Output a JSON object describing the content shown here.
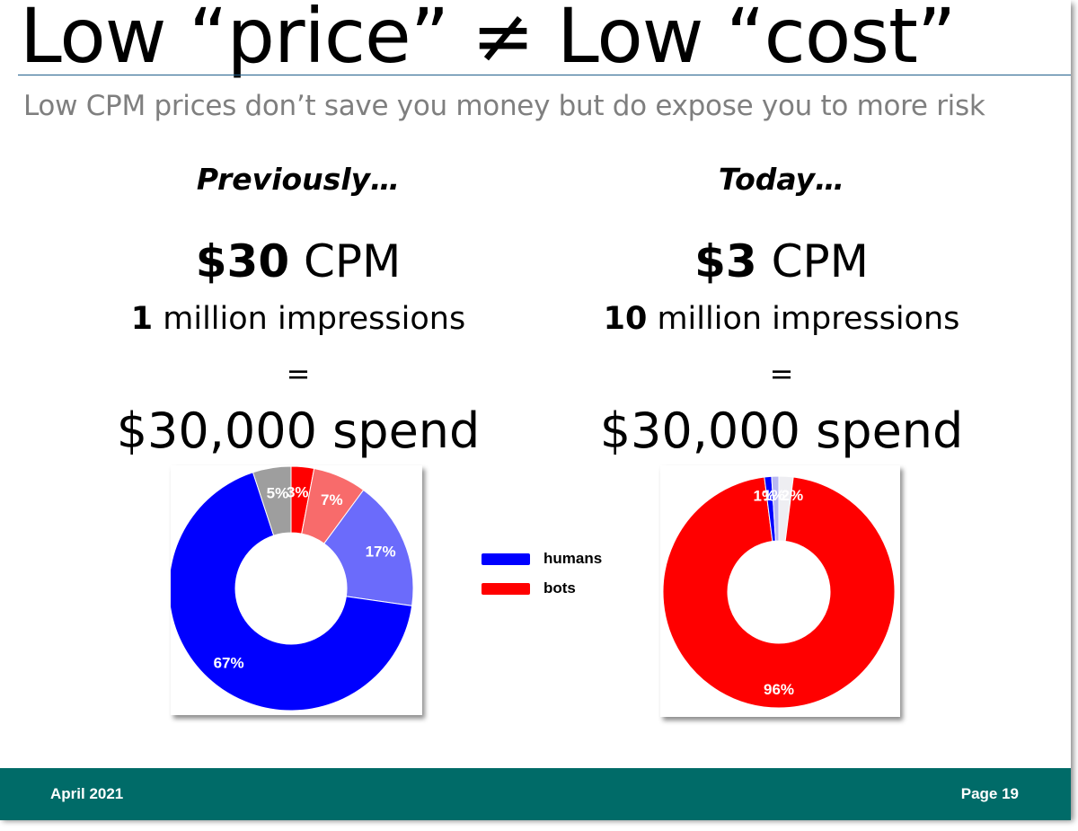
{
  "slide": {
    "title": "Low “price” ≠  Low “cost”",
    "subtitle": "Low CPM prices don’t save you money but do expose you to more risk"
  },
  "left_column": {
    "heading": "Previously…",
    "cpm_value": "$30",
    "cpm_unit": " CPM",
    "impressions_value": "1",
    "impressions_text": " million impressions",
    "equals": "=",
    "spend": "$30,000 spend"
  },
  "right_column": {
    "heading": "Today…",
    "cpm_value": "$3",
    "cpm_unit": " CPM",
    "impressions_value": "10",
    "impressions_text": " million impressions",
    "equals": "=",
    "spend": "$30,000 spend"
  },
  "legend": {
    "items": [
      {
        "label": "humans",
        "color": "#0000ff"
      },
      {
        "label": "bots",
        "color": "#ff0000"
      }
    ]
  },
  "chart_data": [
    {
      "type": "pie",
      "donut": true,
      "title": "",
      "slices": [
        {
          "label": "3%",
          "value": 3,
          "color": "#ff0000",
          "text_color": "#ffffff"
        },
        {
          "label": "7%",
          "value": 7,
          "color": "#f86b6b",
          "text_color": "#ffffff"
        },
        {
          "label": "17%",
          "value": 17,
          "color": "#6b6bfb",
          "text_color": "#ffffff"
        },
        {
          "label": "67%",
          "value": 67,
          "color": "#0000ff",
          "text_color": "#ffffff"
        },
        {
          "label": "5%",
          "value": 5,
          "color": "#9e9e9e",
          "text_color": "#ffffff"
        }
      ]
    },
    {
      "type": "pie",
      "donut": true,
      "title": "",
      "slices": [
        {
          "label": "2%",
          "value": 2,
          "color": "#eeeef2",
          "text_color": "#ffffff"
        },
        {
          "label": "96%",
          "value": 96,
          "color": "#ff0000",
          "text_color": "#ffffff"
        },
        {
          "label": "1%",
          "value": 1,
          "color": "#0000ff",
          "text_color": "#ffffff"
        },
        {
          "label": "1%",
          "value": 1,
          "color": "#b8b8f2",
          "text_color": "#ffffff"
        }
      ]
    }
  ],
  "footer": {
    "date": "April 2021",
    "page": "Page 19"
  }
}
